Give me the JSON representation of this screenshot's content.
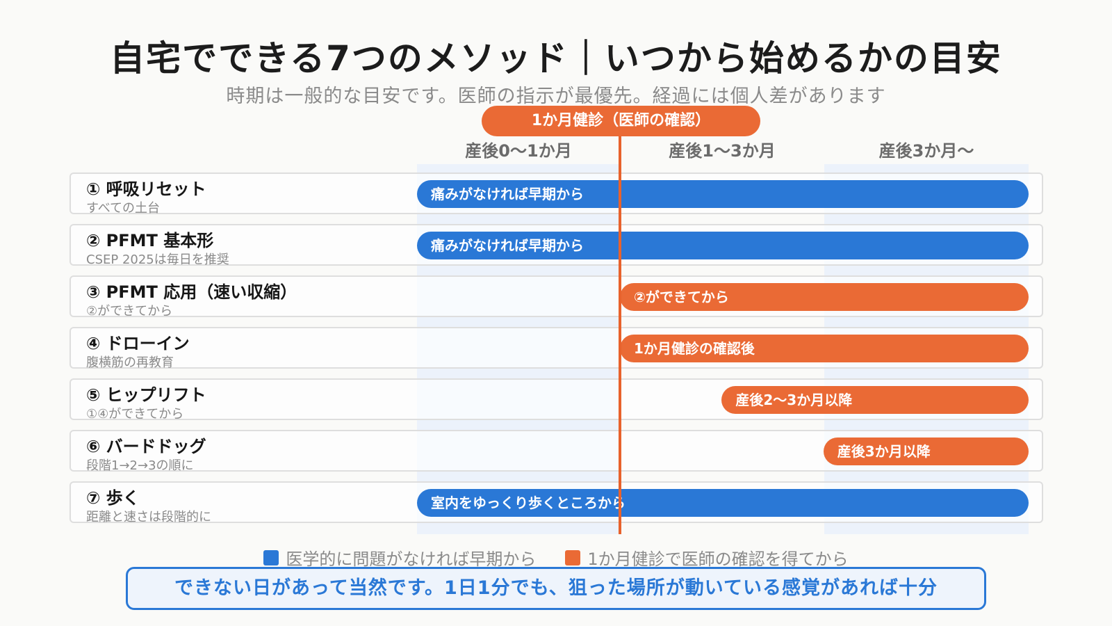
{
  "title": "自宅でできる7つのメソッド｜いつから始めるかの目安",
  "subtitle": "時期は一般的な目安です。医師の指示が最優先。経過には個人差があります",
  "checkup_label": "1か月健診（医師の確認）",
  "columns": [
    "産後0〜1か月",
    "産後1〜3か月",
    "産後3か月〜"
  ],
  "colors": {
    "blue": "#2a78d6",
    "orange": "#ea6a35",
    "band": "#ecf2fb"
  },
  "rows": [
    {
      "name": "① 呼吸リセット",
      "note": "すべての土台",
      "bar": "痛みがなければ早期から",
      "color": "blue",
      "start_week": 0
    },
    {
      "name": "② PFMT 基本形",
      "note": "CSEP 2025は毎日を推奨",
      "bar": "痛みがなければ早期から",
      "color": "blue",
      "start_week": 0
    },
    {
      "name": "③ PFMT 応用（速い収縮）",
      "note": "②ができてから",
      "bar": "②ができてから",
      "color": "orange",
      "start_week": 4
    },
    {
      "name": "④ ドローイン",
      "note": "腹横筋の再教育",
      "bar": "1か月健診の確認後",
      "color": "orange",
      "start_week": 4
    },
    {
      "name": "⑤ ヒップリフト",
      "note": "①④ができてから",
      "bar": "産後2〜3か月以降",
      "color": "orange",
      "start_week": 8
    },
    {
      "name": "⑥ バードドッグ",
      "note": "段階1→2→3の順に",
      "bar": "産後3か月以降",
      "color": "orange",
      "start_week": 12
    },
    {
      "name": "⑦ 歩く",
      "note": "距離と速さは段階的に",
      "bar": "室内をゆっくり歩くところから",
      "color": "blue",
      "start_week": 0
    }
  ],
  "legend": [
    {
      "label": "医学的に問題がなければ早期から",
      "color": "blue"
    },
    {
      "label": "1か月健診で医師の確認を得てから",
      "color": "orange"
    }
  ],
  "footer": "できない日があって当然です。1日1分でも、狙った場所が動いている感覚があれば十分"
}
